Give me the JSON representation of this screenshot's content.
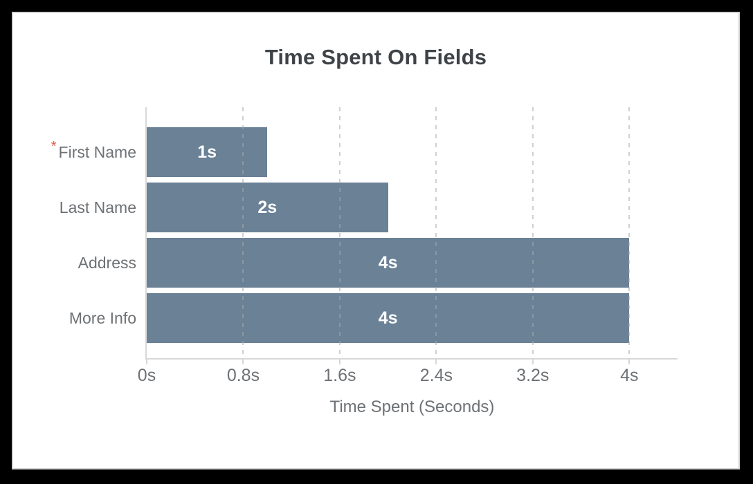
{
  "window": {
    "frame_color": "#000000",
    "panel_background": "#ffffff",
    "panel_edge_color": "#d4d4d4"
  },
  "chart_data": {
    "type": "bar",
    "orientation": "horizontal",
    "title": "Time Spent On Fields",
    "xlabel": "Time Spent (Seconds)",
    "legend": "none",
    "categories": [
      "First Name",
      "Last Name",
      "Address",
      "More Info"
    ],
    "required_flags": [
      true,
      false,
      false,
      false
    ],
    "required_marker_glyph": "*",
    "values": [
      1,
      2,
      4,
      4
    ],
    "value_labels": [
      "1s",
      "2s",
      "4s",
      "4s"
    ],
    "x_ticks": [
      {
        "value": 0,
        "label": "0s"
      },
      {
        "value": 0.8,
        "label": "0.8s"
      },
      {
        "value": 1.6,
        "label": "1.6s"
      },
      {
        "value": 2.4,
        "label": "2.4s"
      },
      {
        "value": 3.2,
        "label": "3.2s"
      },
      {
        "value": 4,
        "label": "4s"
      }
    ],
    "xlim": [
      0,
      4.4
    ],
    "grid": {
      "style": "dashed",
      "lines": "vertical",
      "on": true
    },
    "colors": {
      "bar": "#6A8196",
      "axis_line": "#d8d8d8",
      "gridline": "#a9a9a9",
      "title_text": "#3e4348",
      "label_text": "#6d7175",
      "value_text": "#ffffff",
      "required_marker": "#e0584b"
    }
  }
}
